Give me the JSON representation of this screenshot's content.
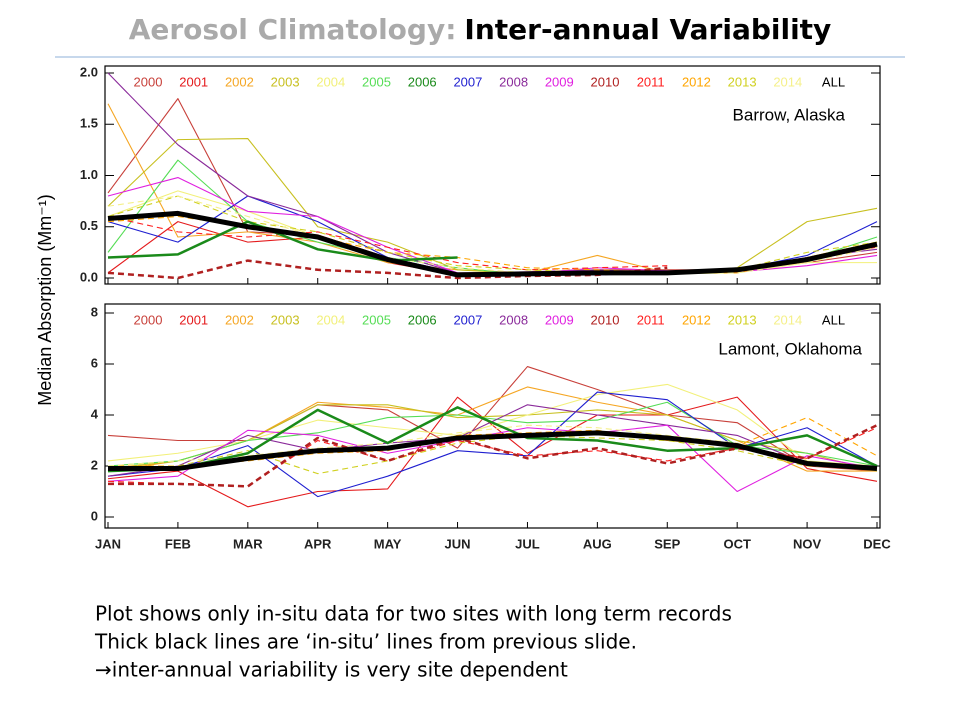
{
  "slide": {
    "title_prefix": "Aerosol Climatology:",
    "title": "Inter-annual Variability",
    "ylabel": "Median Absorption (Mm⁻¹)",
    "notes": [
      "Plot shows only in-situ data for two sites with long term records",
      "Thick black lines are ‘in-situ’ lines from previous slide.",
      "→inter-annual variability is very site dependent"
    ]
  },
  "chart_data": [
    {
      "type": "line",
      "annotation": "Barrow, Alaska",
      "ylim": [
        0,
        2
      ],
      "yticks": [
        {
          "value": 0,
          "label": "0.0"
        },
        0.5,
        {
          "value": 1,
          "label": "1.0"
        },
        1.5,
        {
          "value": 2,
          "label": "2.0"
        }
      ],
      "series": [
        {
          "name": "2000",
          "color": "#c8403a",
          "values": [
            0.83,
            1.75,
            0.45,
            0.42,
            0.2,
            0.05,
            0.05,
            0.08,
            0.08,
            0.08,
            0.15,
            0.25
          ]
        },
        {
          "name": "2001",
          "color": "#e41a1c",
          "values": [
            0.05,
            0.55,
            0.35,
            0.4,
            0.15,
            0.03,
            0.04,
            0.06,
            0.05,
            0.07,
            0.2,
            0.3
          ]
        },
        {
          "name": "2002",
          "color": "#f5a623",
          "values": [
            1.7,
            0.4,
            0.45,
            0.35,
            0.15,
            0.08,
            0.05,
            0.22,
            0.05,
            0.05,
            0.2,
            0.35
          ]
        },
        {
          "name": "2003",
          "color": "#c8c020",
          "values": [
            0.7,
            1.35,
            1.36,
            0.5,
            0.35,
            0.08,
            0.04,
            0.05,
            0.05,
            0.1,
            0.55,
            0.68
          ]
        },
        {
          "name": "2004",
          "color": "#f2f07a",
          "values": [
            0.6,
            0.85,
            0.65,
            0.4,
            0.2,
            0.05,
            0.04,
            0.04,
            0.04,
            0.05,
            0.15,
            0.15
          ]
        },
        {
          "name": "2005",
          "color": "#55dd55",
          "values": [
            0.25,
            1.15,
            0.55,
            0.35,
            0.2,
            0.1,
            0.03,
            0.04,
            0.04,
            0.06,
            0.18,
            0.4
          ]
        },
        {
          "name": "2006",
          "color": "#1a8a1a",
          "width": 2.5,
          "values": [
            0.2,
            0.23,
            0.55,
            0.28,
            0.17,
            0.2,
            null,
            null,
            null,
            null,
            null,
            null
          ]
        },
        {
          "name": "2007",
          "color": "#1f1fd0",
          "values": [
            0.55,
            0.35,
            0.8,
            0.55,
            0.2,
            0.05,
            0.04,
            0.03,
            0.05,
            0.08,
            0.22,
            0.55
          ]
        },
        {
          "name": "2008",
          "color": "#8a2a9a",
          "values": [
            2.0,
            1.3,
            0.8,
            0.6,
            0.25,
            0.05,
            0.06,
            0.08,
            0.05,
            0.07,
            0.2,
            0.28
          ]
        },
        {
          "name": "2009",
          "color": "#e020e0",
          "values": [
            0.8,
            0.98,
            0.65,
            0.6,
            0.3,
            0.05,
            0.04,
            0.1,
            0.07,
            0.06,
            0.12,
            0.22
          ]
        },
        {
          "name": "2010",
          "color": "#b02020",
          "width": 2.5,
          "dash": true,
          "values": [
            0.05,
            0.0,
            0.17,
            0.08,
            0.05,
            0.0,
            0.02,
            0.03,
            0.1,
            null,
            null,
            null
          ]
        },
        {
          "name": "2011",
          "color": "#ff2020",
          "dash": true,
          "values": [
            0.6,
            0.45,
            0.4,
            0.45,
            0.3,
            0.15,
            0.08,
            0.1,
            0.12,
            null,
            null,
            null
          ]
        },
        {
          "name": "2012",
          "color": "#ffa500",
          "dash": true,
          "values": [
            0.55,
            0.6,
            0.5,
            0.4,
            0.25,
            0.2,
            0.1,
            0.08,
            0.05,
            0.05,
            0.2,
            0.35
          ]
        },
        {
          "name": "2013",
          "color": "#d0d020",
          "dash": true,
          "values": [
            0.6,
            0.8,
            0.55,
            0.45,
            0.25,
            0.12,
            0.08,
            0.05,
            0.05,
            0.08,
            0.25,
            0.35
          ]
        },
        {
          "name": "2014",
          "color": "#f5f08a",
          "dash": true,
          "values": [
            0.7,
            0.8,
            0.6,
            0.4,
            0.2,
            0.1,
            0.05,
            0.05,
            0.05,
            0.05,
            0.15,
            0.3
          ]
        },
        {
          "name": "ALL",
          "color": "#000000",
          "width": 5,
          "values": [
            0.58,
            0.63,
            0.5,
            0.4,
            0.18,
            0.03,
            0.04,
            0.05,
            0.05,
            0.08,
            0.18,
            0.33
          ]
        }
      ]
    },
    {
      "type": "line",
      "annotation": "Lamont, Oklahoma",
      "categories": [
        "JAN",
        "FEB",
        "MAR",
        "APR",
        "MAY",
        "JUN",
        "JUL",
        "AUG",
        "SEP",
        "OCT",
        "NOV",
        "DEC"
      ],
      "ylim": [
        0,
        8
      ],
      "yticks": [
        0,
        2,
        4,
        6,
        8
      ],
      "series": [
        {
          "name": "2000",
          "color": "#c8403a",
          "values": [
            3.2,
            3.0,
            3.0,
            4.4,
            4.2,
            2.7,
            5.9,
            5.0,
            4.0,
            3.7,
            2.0,
            1.8
          ]
        },
        {
          "name": "2001",
          "color": "#e41a1c",
          "values": [
            1.5,
            1.8,
            0.4,
            1.0,
            1.1,
            4.7,
            2.5,
            4.0,
            4.0,
            4.7,
            1.9,
            1.4
          ]
        },
        {
          "name": "2002",
          "color": "#f5a623",
          "values": [
            1.8,
            2.2,
            3.0,
            4.5,
            4.3,
            4.0,
            5.1,
            4.5,
            4.0,
            3.0,
            1.8,
            1.8
          ]
        },
        {
          "name": "2003",
          "color": "#c8c020",
          "values": [
            1.9,
            2.2,
            3.0,
            4.4,
            4.4,
            3.9,
            4.0,
            4.2,
            4.0,
            3.0,
            2.5,
            1.8
          ]
        },
        {
          "name": "2004",
          "color": "#f2f07a",
          "values": [
            2.2,
            2.5,
            3.0,
            3.8,
            3.5,
            3.2,
            4.0,
            4.8,
            5.2,
            4.2,
            2.2,
            2.0
          ]
        },
        {
          "name": "2005",
          "color": "#55dd55",
          "values": [
            2.0,
            2.2,
            3.0,
            3.3,
            3.9,
            4.0,
            3.7,
            3.8,
            4.5,
            2.8,
            2.5,
            2.0
          ]
        },
        {
          "name": "2006",
          "color": "#1a8a1a",
          "width": 2.5,
          "values": [
            1.8,
            1.9,
            2.5,
            4.2,
            2.9,
            4.3,
            3.1,
            3.0,
            2.6,
            2.7,
            3.2,
            2.0
          ]
        },
        {
          "name": "2007",
          "color": "#1f1fd0",
          "values": [
            1.6,
            1.9,
            2.8,
            0.8,
            1.6,
            2.6,
            2.4,
            4.9,
            4.6,
            2.7,
            3.5,
            2.0
          ]
        },
        {
          "name": "2008",
          "color": "#8a2a9a",
          "values": [
            1.6,
            2.0,
            3.2,
            2.6,
            2.9,
            3.1,
            4.4,
            4.0,
            3.6,
            3.2,
            2.1,
            2.0
          ]
        },
        {
          "name": "2009",
          "color": "#e020e0",
          "values": [
            1.4,
            1.6,
            3.4,
            3.2,
            2.5,
            3.0,
            3.5,
            3.3,
            3.6,
            1.0,
            2.4,
            1.9
          ]
        },
        {
          "name": "2010",
          "color": "#b02020",
          "width": 2.5,
          "dash": true,
          "values": [
            1.3,
            1.3,
            1.2,
            3.1,
            2.2,
            3.1,
            2.3,
            2.7,
            2.1,
            2.7,
            2.3,
            3.6
          ]
        },
        {
          "name": "2011",
          "color": "#ff2020",
          "dash": true,
          "values": [
            1.4,
            1.3,
            1.2,
            3.0,
            2.2,
            3.0,
            2.4,
            2.6,
            2.2,
            2.7,
            2.3,
            3.5
          ]
        },
        {
          "name": "2012",
          "color": "#ffa500",
          "dash": true,
          "values": [
            2.0,
            2.0,
            2.2,
            2.5,
            2.6,
            3.2,
            3.3,
            3.4,
            3.0,
            2.8,
            3.9,
            2.4
          ]
        },
        {
          "name": "2013",
          "color": "#d0d020",
          "dash": true,
          "values": [
            1.9,
            2.0,
            2.6,
            1.7,
            2.2,
            2.9,
            3.2,
            3.1,
            3.0,
            2.6,
            2.0,
            1.9
          ]
        },
        {
          "name": "2014",
          "color": "#f5f08a",
          "dash": true,
          "values": [
            2.0,
            2.2,
            2.4,
            2.7,
            2.9,
            3.3,
            3.6,
            3.5,
            3.2,
            2.9,
            2.1,
            1.9
          ]
        },
        {
          "name": "ALL",
          "color": "#000000",
          "width": 5,
          "values": [
            1.9,
            1.9,
            2.3,
            2.6,
            2.7,
            3.1,
            3.2,
            3.3,
            3.1,
            2.8,
            2.1,
            1.9
          ]
        }
      ]
    }
  ]
}
